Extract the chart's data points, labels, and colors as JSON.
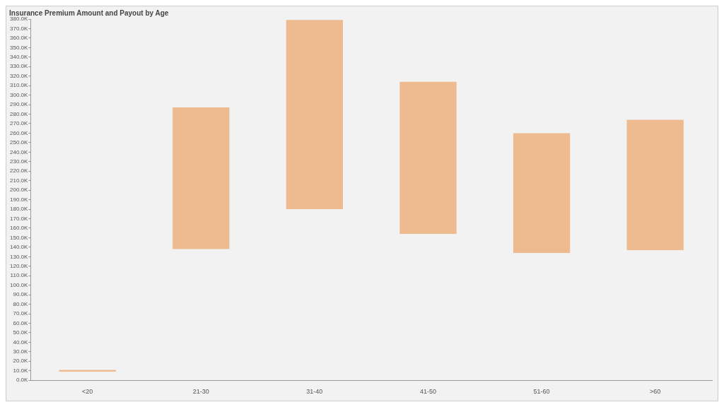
{
  "chart_data": {
    "type": "bar",
    "title": "Insurance Premium Amount and Payout by Age",
    "categories": [
      "<20",
      "21-30",
      "31-40",
      "41-50",
      "51-60",
      ">60"
    ],
    "base": [
      9,
      138,
      180,
      154,
      134,
      137
    ],
    "values": [
      2,
      149,
      199,
      160,
      126,
      137
    ],
    "color": "#edbb8f",
    "ylim": [
      0,
      380
    ],
    "yticks": [
      {
        "value": 0,
        "label": "0.0K"
      },
      {
        "value": 10,
        "label": "10.0K"
      },
      {
        "value": 20,
        "label": "20.0K"
      },
      {
        "value": 30,
        "label": "30.0K"
      },
      {
        "value": 40,
        "label": "40.0K"
      },
      {
        "value": 50,
        "label": "50.0K"
      },
      {
        "value": 60,
        "label": "60.0K"
      },
      {
        "value": 70,
        "label": "70.0K"
      },
      {
        "value": 80,
        "label": "80.0K"
      },
      {
        "value": 90,
        "label": "90.0K"
      },
      {
        "value": 100,
        "label": "100.0K"
      },
      {
        "value": 110,
        "label": "110.0K"
      },
      {
        "value": 120,
        "label": "120.0K"
      },
      {
        "value": 130,
        "label": "130.0K"
      },
      {
        "value": 140,
        "label": "140.0K"
      },
      {
        "value": 150,
        "label": "150.0K"
      },
      {
        "value": 160,
        "label": "160.0K"
      },
      {
        "value": 170,
        "label": "170.0K"
      },
      {
        "value": 180,
        "label": "180.0K"
      },
      {
        "value": 190,
        "label": "190.0K"
      },
      {
        "value": 200,
        "label": "200.0K"
      },
      {
        "value": 210,
        "label": "210.0K"
      },
      {
        "value": 220,
        "label": "220.0K"
      },
      {
        "value": 230,
        "label": "230.0K"
      },
      {
        "value": 240,
        "label": "240.0K"
      },
      {
        "value": 250,
        "label": "250.0K"
      },
      {
        "value": 260,
        "label": "260.0K"
      },
      {
        "value": 270,
        "label": "270.0K"
      },
      {
        "value": 280,
        "label": "280.0K"
      },
      {
        "value": 290,
        "label": "290.0K"
      },
      {
        "value": 300,
        "label": "300.0K"
      },
      {
        "value": 310,
        "label": "310.0K"
      },
      {
        "value": 320,
        "label": "320.0K"
      },
      {
        "value": 330,
        "label": "330.0K"
      },
      {
        "value": 340,
        "label": "340.0K"
      },
      {
        "value": 350,
        "label": "350.0K"
      },
      {
        "value": 360,
        "label": "360.0K"
      },
      {
        "value": 370,
        "label": "370.0K"
      },
      {
        "value": 380,
        "label": "380.0K"
      }
    ],
    "grid": false,
    "legend": false
  }
}
